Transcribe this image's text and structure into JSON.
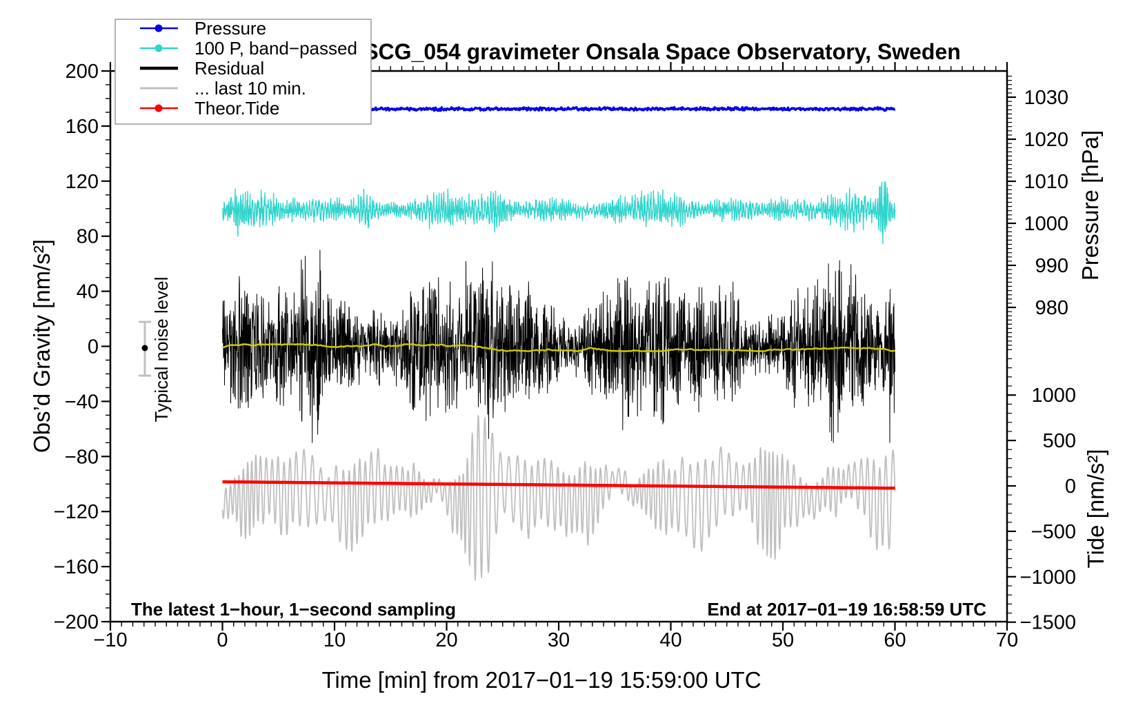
{
  "title": "SCG_054 gravimeter Onsala Space Observatory, Sweden",
  "x_axis": {
    "label": "Time [min] from 2017−01−19 15:59:00 UTC",
    "min": -10,
    "max": 70,
    "major_step": 10,
    "minor_step": 1,
    "tick_labels": [
      "−10",
      "0",
      "10",
      "20",
      "30",
      "40",
      "50",
      "60",
      "70"
    ],
    "tick_values": [
      -10,
      0,
      10,
      20,
      30,
      40,
      50,
      60,
      70
    ]
  },
  "left_axis": {
    "label": "Obs’d Gravity [nm/s²]",
    "min": -200,
    "max": 200,
    "major_step": 40,
    "minor_step": 10,
    "tick_labels": [
      "200",
      "160",
      "120",
      "80",
      "40",
      "0",
      "−40",
      "−80",
      "−120",
      "−160",
      "−200"
    ],
    "tick_values": [
      200,
      160,
      120,
      80,
      40,
      0,
      -40,
      -80,
      -120,
      -160,
      -200
    ]
  },
  "pressure_axis": {
    "label": "Pressure [hPa]",
    "major_step": 10,
    "minor_step": 1,
    "minor_min": 971,
    "minor_max": 1036,
    "tick_labels": [
      "1030",
      "1020",
      "1010",
      "1000",
      "990",
      "980"
    ],
    "tick_values": [
      1030,
      1020,
      1010,
      1000,
      990,
      980
    ]
  },
  "tide_axis": {
    "label": "Tide [nm/s²]",
    "major_step": 500,
    "minor_step": 100,
    "minor_min": -1500,
    "minor_max": 1500,
    "tick_labels": [
      "1000",
      "500",
      "0",
      "−500",
      "−1000",
      "−1500"
    ],
    "tick_values": [
      1000,
      500,
      0,
      -500,
      -1000,
      -1500
    ]
  },
  "legend": {
    "items": [
      {
        "label": "Pressure",
        "color": "#0000ee",
        "marker": "circle",
        "line_width": 2.5
      },
      {
        "label": "100 P, band−passed",
        "color": "#2fd4cc",
        "marker": "circle",
        "line_width": 2.5
      },
      {
        "label": "Residual",
        "color": "#000000",
        "marker": "none",
        "line_width": 4.5
      },
      {
        "label": "... last 10 min.",
        "color": "#bfbfbf",
        "marker": "none",
        "line_width": 3
      },
      {
        "label": "Theor.Tide",
        "color": "#ff0000",
        "marker": "circle",
        "line_width": 2.5
      }
    ]
  },
  "annotations": {
    "noise_marker_label": "Typical noise level",
    "sampling_note": "The latest 1−hour, 1−second sampling",
    "end_note": "End at 2017−01−19 16:58:59 UTC"
  },
  "chart_data": {
    "type": "line",
    "x_unit": "minutes",
    "x_range_data": [
      0,
      60
    ],
    "noise_marker": {
      "x_min": -6.9,
      "value": 0,
      "error": 20,
      "bar_color": "#c0c0c0",
      "dot_color": "#000000"
    },
    "series": [
      {
        "name": "Pressure",
        "axis": "pressure",
        "style": "flat-noise",
        "color": "#0000ee",
        "width": 3.5,
        "value": 1027.2,
        "noise": 0.3,
        "points": 900
      },
      {
        "name": "100 P, band-passed",
        "axis": "gravity",
        "style": "bandpassed",
        "color": "#2fd4cc",
        "width": 1.4,
        "center": 99,
        "typ_amplitude": 9,
        "burst_centers": [
          1.5,
          12.8,
          24.3,
          59.0
        ],
        "burst_amplitudes": [
          8,
          6,
          7,
          24
        ],
        "points": 2000
      },
      {
        "name": "Residual",
        "axis": "gravity",
        "style": "dense-noise",
        "color": "#000000",
        "width": 1,
        "center": 0,
        "typ_amplitude": 40,
        "max_amplitude": 70,
        "points": 2600
      },
      {
        "name": "Residual smoothed",
        "axis": "gravity",
        "style": "smooth-noise",
        "color": "#c9c900",
        "width": 2.5,
        "center": -0.5,
        "typ_amplitude": 2,
        "points": 500
      },
      {
        "name": "... last 10 min.",
        "axis": "tide",
        "style": "oscillation",
        "color": "#bfbfbf",
        "width": 1.8,
        "center": -60,
        "base_amplitude": 280,
        "amp_variation": 150,
        "period_min": 0.55,
        "burst_centers": [
          2.8,
          23.0,
          49.0
        ],
        "burst_amplitudes": [
          200,
          420,
          180
        ],
        "neg_skew": 1.25,
        "points": 1600
      },
      {
        "name": "Theor.Tide",
        "axis": "tide",
        "style": "trend",
        "color": "#ff0000",
        "width": 4.5,
        "start_value": 45,
        "end_value": -25,
        "points": 200
      }
    ]
  }
}
